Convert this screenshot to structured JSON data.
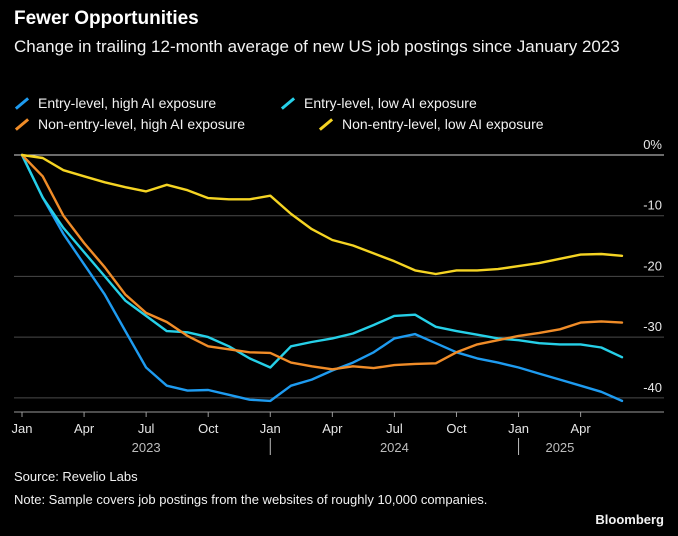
{
  "title": "Fewer Opportunities",
  "subtitle": "Change in trailing 12-month average of new US job postings since January 2023",
  "source": "Source: Revelio Labs",
  "note": "Note: Sample covers job postings from the websites of roughly 10,000 companies.",
  "brand": "Bloomberg",
  "chart_data": {
    "type": "line",
    "ylim": [
      -42,
      0
    ],
    "yticks": [
      {
        "value": 0,
        "label": "0%"
      },
      {
        "value": -10,
        "label": "-10"
      },
      {
        "value": -20,
        "label": "-20"
      },
      {
        "value": -30,
        "label": "-30"
      },
      {
        "value": -40,
        "label": "-40"
      }
    ],
    "x_months": [
      "2023-01",
      "2023-02",
      "2023-03",
      "2023-04",
      "2023-05",
      "2023-06",
      "2023-07",
      "2023-08",
      "2023-09",
      "2023-10",
      "2023-11",
      "2023-12",
      "2024-01",
      "2024-02",
      "2024-03",
      "2024-04",
      "2024-05",
      "2024-06",
      "2024-07",
      "2024-08",
      "2024-09",
      "2024-10",
      "2024-11",
      "2024-12",
      "2025-01",
      "2025-02",
      "2025-03",
      "2025-04",
      "2025-05",
      "2025-06"
    ],
    "xticks": [
      {
        "month": "2023-01",
        "label": "Jan"
      },
      {
        "month": "2023-04",
        "label": "Apr"
      },
      {
        "month": "2023-07",
        "label": "Jul"
      },
      {
        "month": "2023-10",
        "label": "Oct"
      },
      {
        "month": "2024-01",
        "label": "Jan"
      },
      {
        "month": "2024-04",
        "label": "Apr"
      },
      {
        "month": "2024-07",
        "label": "Jul"
      },
      {
        "month": "2024-10",
        "label": "Oct"
      },
      {
        "month": "2025-01",
        "label": "Jan"
      },
      {
        "month": "2025-04",
        "label": "Apr"
      }
    ],
    "year_labels": [
      {
        "month": "2023-07",
        "label": "2023"
      },
      {
        "month": "2024-07",
        "label": "2024"
      },
      {
        "month": "2025-03",
        "label": "2025"
      }
    ],
    "year_separators": [
      "2024-01",
      "2025-01"
    ],
    "series": [
      {
        "name": "Entry-level, high AI exposure",
        "color": "#1e9bf0",
        "values": [
          0,
          -7,
          -13,
          -18,
          -23,
          -29,
          -35,
          -38,
          -38.8,
          -38.7,
          -39.5,
          -40.3,
          -40.5,
          -38,
          -37,
          -35.5,
          -34.2,
          -32.5,
          -30.2,
          -29.5,
          -31,
          -32.5,
          -33.5,
          -34.2,
          -35,
          -36,
          -37,
          -38,
          -39,
          -40.5
        ]
      },
      {
        "name": "Entry-level, low AI exposure",
        "color": "#26d0e8",
        "values": [
          0,
          -7,
          -12,
          -16,
          -20,
          -24,
          -26.5,
          -29,
          -29.2,
          -30,
          -31.5,
          -33.5,
          -35,
          -31.5,
          -30.8,
          -30.2,
          -29.4,
          -28,
          -26.5,
          -26.3,
          -28.3,
          -29,
          -29.6,
          -30.2,
          -30.5,
          -31,
          -31.2,
          -31.2,
          -31.7,
          -33.3
        ]
      },
      {
        "name": "Non-entry-level, high AI exposure",
        "color": "#f08c28",
        "values": [
          0,
          -3.5,
          -10,
          -14.5,
          -18.5,
          -23,
          -26,
          -27.5,
          -29.8,
          -31.5,
          -32,
          -32.5,
          -32.6,
          -34.2,
          -34.8,
          -35.3,
          -34.8,
          -35.1,
          -34.6,
          -34.4,
          -34.3,
          -32.5,
          -31.2,
          -30.5,
          -29.8,
          -29.3,
          -28.7,
          -27.6,
          -27.4,
          -27.6
        ]
      },
      {
        "name": "Non-entry-level, low AI exposure",
        "color": "#f5d423",
        "values": [
          0,
          -0.5,
          -2.5,
          -3.5,
          -4.5,
          -5.3,
          -6,
          -4.9,
          -5.8,
          -7.1,
          -7.3,
          -7.3,
          -6.7,
          -9.7,
          -12.2,
          -14,
          -14.9,
          -16.2,
          -17.5,
          -19,
          -19.6,
          -19,
          -19,
          -18.8,
          -18.3,
          -17.8,
          -17.1,
          -16.4,
          -16.3,
          -16.6
        ]
      }
    ]
  }
}
